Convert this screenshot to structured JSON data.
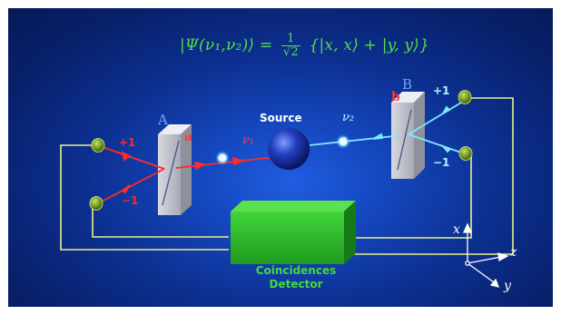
{
  "formula": "|Ψ(ν₁,ν₂)⟩ = 1/√2 {|x, x⟩ + |y, y⟩}",
  "formula_display": {
    "lhs": "|Ψ(ν₁,ν₂)⟩ =",
    "frac_num": "1",
    "frac_den": "√2",
    "rhs": "{|x, x⟩ + |y, y⟩}"
  },
  "labels": {
    "source": "Source",
    "polarizer_a": "A",
    "polarizer_b": "B",
    "channel_a": "a",
    "channel_b": "b",
    "photon_1": "ν₁",
    "photon_2": "ν₂",
    "a_plus": "+1",
    "a_minus": "−1",
    "b_plus": "+1",
    "b_minus": "−1",
    "detector_line1": "Coincidences",
    "detector_line2": "Detector"
  },
  "axes": {
    "x": "x",
    "y": "y",
    "z": "z"
  },
  "colors": {
    "background": "#0c2f8f",
    "formula": "#52e04a",
    "beam_a": "#ff2a2a",
    "beam_b": "#7fe7ff",
    "wire": "#e8f08a",
    "detector": "#2fbf2f",
    "polarizer_label": "#6aa7ff"
  }
}
